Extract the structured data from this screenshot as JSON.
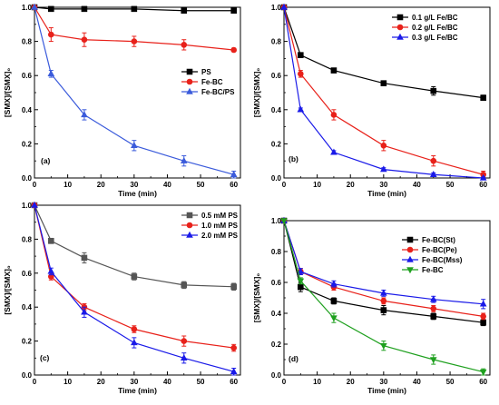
{
  "chart_data": [
    {
      "type": "line",
      "panel_label": "(a)",
      "xlabel": "Time (min)",
      "ylabel": "[SMX]/[SMX]₀",
      "xlim": [
        0,
        62
      ],
      "ylim": [
        0,
        1.0
      ],
      "xticks": [
        "0",
        "10",
        "20",
        "30",
        "40",
        "50",
        "60"
      ],
      "yticks": [
        "0.0",
        "0.2",
        "0.4",
        "0.6",
        "0.8",
        "1.0"
      ],
      "legend_position": "right-middle",
      "x": [
        0,
        5,
        15,
        30,
        45,
        60
      ],
      "series": [
        {
          "name": "PS",
          "values": [
            1.0,
            0.99,
            0.99,
            0.99,
            0.98,
            0.98
          ],
          "errors": [
            0,
            0.01,
            0.01,
            0.01,
            0.01,
            0.01
          ],
          "color": "#000000",
          "marker": "square"
        },
        {
          "name": "Fe-BC",
          "values": [
            1.0,
            0.84,
            0.81,
            0.8,
            0.78,
            0.75
          ],
          "errors": [
            0,
            0.04,
            0.04,
            0.03,
            0.03,
            0.01
          ],
          "color": "#e8211a",
          "marker": "circle"
        },
        {
          "name": "Fe-BC/PS",
          "values": [
            1.0,
            0.61,
            0.37,
            0.19,
            0.1,
            0.02
          ],
          "errors": [
            0,
            0.02,
            0.03,
            0.03,
            0.03,
            0.02
          ],
          "color": "#3b5bdb",
          "marker": "triangle-up"
        }
      ]
    },
    {
      "type": "line",
      "panel_label": "(b)",
      "xlabel": "Time (min)",
      "ylabel": "[SMX]/[SMX]₀",
      "xlim": [
        0,
        62
      ],
      "ylim": [
        0,
        1.0
      ],
      "xticks": [
        "0",
        "10",
        "20",
        "30",
        "40",
        "50",
        "60"
      ],
      "yticks": [
        "0.0",
        "0.2",
        "0.4",
        "0.6",
        "0.8",
        "1.0"
      ],
      "legend_position": "top-right",
      "x": [
        0,
        5,
        15,
        30,
        45,
        60
      ],
      "series": [
        {
          "name": "0.1 g/L Fe/BC",
          "values": [
            1.0,
            0.72,
            0.63,
            0.555,
            0.51,
            0.47
          ],
          "errors": [
            0,
            0.01,
            0.01,
            0.01,
            0.025,
            0.015
          ],
          "color": "#000000",
          "marker": "square"
        },
        {
          "name": "0.2 g/L Fe/BC",
          "values": [
            1.0,
            0.61,
            0.37,
            0.19,
            0.1,
            0.02
          ],
          "errors": [
            0,
            0.02,
            0.03,
            0.03,
            0.03,
            0.02
          ],
          "color": "#e8211a",
          "marker": "circle"
        },
        {
          "name": "0.3 g/L Fe/BC",
          "values": [
            1.0,
            0.4,
            0.15,
            0.05,
            0.02,
            0.0
          ],
          "errors": [
            0,
            0.01,
            0.01,
            0.01,
            0.01,
            0.005
          ],
          "color": "#1a1ae8",
          "marker": "triangle-up"
        }
      ]
    },
    {
      "type": "line",
      "panel_label": "(c)",
      "xlabel": "Time (min)",
      "ylabel": "[SMX]/[SMX]₀",
      "xlim": [
        0,
        62
      ],
      "ylim": [
        0,
        1.0
      ],
      "xticks": [
        "0",
        "10",
        "20",
        "30",
        "40",
        "50",
        "60"
      ],
      "yticks": [
        "0.0",
        "0.2",
        "0.4",
        "0.6",
        "0.8",
        "1.0"
      ],
      "legend_position": "top-right",
      "x": [
        0,
        5,
        15,
        30,
        45,
        60
      ],
      "series": [
        {
          "name": "0.5 mM PS",
          "values": [
            1.0,
            0.79,
            0.69,
            0.58,
            0.53,
            0.52
          ],
          "errors": [
            0,
            0.015,
            0.03,
            0.02,
            0.02,
            0.02
          ],
          "color": "#555555",
          "marker": "square"
        },
        {
          "name": "1.0 mM PS",
          "values": [
            1.0,
            0.58,
            0.4,
            0.27,
            0.2,
            0.16
          ],
          "errors": [
            0,
            0.02,
            0.02,
            0.02,
            0.03,
            0.02
          ],
          "color": "#e8211a",
          "marker": "circle"
        },
        {
          "name": "2.0 mM PS",
          "values": [
            1.0,
            0.61,
            0.37,
            0.19,
            0.1,
            0.02
          ],
          "errors": [
            0,
            0.02,
            0.03,
            0.03,
            0.03,
            0.02
          ],
          "color": "#1a1ae8",
          "marker": "triangle-up"
        }
      ]
    },
    {
      "type": "line",
      "panel_label": "(d)",
      "xlabel": "Time (min)",
      "ylabel": "[SMX]/[SMX]₀",
      "xlim": [
        0,
        62
      ],
      "ylim": [
        0,
        1.0
      ],
      "xticks": [
        "0",
        "10",
        "20",
        "30",
        "40",
        "50",
        "60"
      ],
      "yticks": [
        "0.0",
        "0.2",
        "0.4",
        "0.6",
        "0.8",
        "1.0"
      ],
      "legend_position": "top-right",
      "x": [
        0,
        5,
        15,
        30,
        45,
        60
      ],
      "series": [
        {
          "name": "Fe-BC(St)",
          "values": [
            1.0,
            0.57,
            0.48,
            0.42,
            0.38,
            0.34
          ],
          "errors": [
            0,
            0.03,
            0.02,
            0.03,
            0.02,
            0.02
          ],
          "color": "#000000",
          "marker": "square"
        },
        {
          "name": "Fe-BC(Pe)",
          "values": [
            1.0,
            0.67,
            0.57,
            0.48,
            0.43,
            0.38
          ],
          "errors": [
            0,
            0.02,
            0.02,
            0.02,
            0.02,
            0.02
          ],
          "color": "#e8211a",
          "marker": "circle"
        },
        {
          "name": "Fe-BC(Mss)",
          "values": [
            1.0,
            0.67,
            0.59,
            0.53,
            0.49,
            0.46
          ],
          "errors": [
            0,
            0.02,
            0.02,
            0.02,
            0.02,
            0.03
          ],
          "color": "#1a1ae8",
          "marker": "triangle-up"
        },
        {
          "name": "Fe-BC",
          "values": [
            1.0,
            0.61,
            0.37,
            0.19,
            0.1,
            0.02
          ],
          "errors": [
            0,
            0.02,
            0.03,
            0.03,
            0.03,
            0.02
          ],
          "color": "#1fa01f",
          "marker": "triangle-down"
        }
      ]
    }
  ]
}
